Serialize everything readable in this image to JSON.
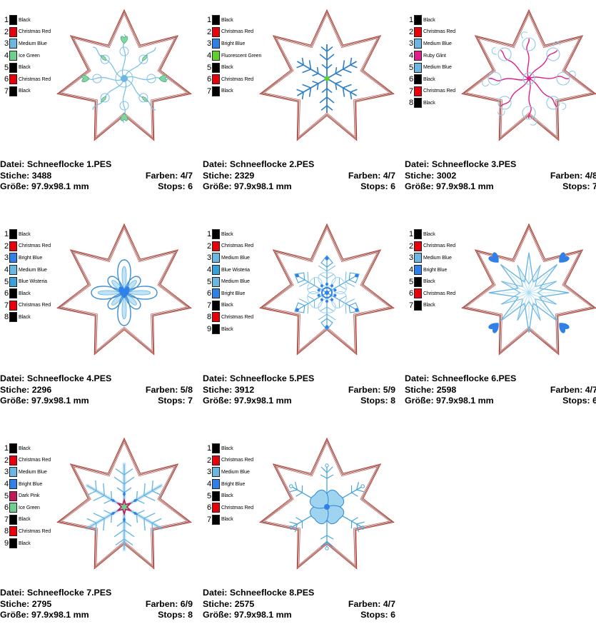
{
  "designs": [
    {
      "motif": "curls-green",
      "colors": [
        {
          "num": "1",
          "name": "Black",
          "hex": "#000000"
        },
        {
          "num": "2",
          "name": "Christmas Red",
          "hex": "#e8000b"
        },
        {
          "num": "3",
          "name": "Medium Blue",
          "hex": "#6bb7e3"
        },
        {
          "num": "4",
          "name": "Ice Green",
          "hex": "#6fcf8f"
        },
        {
          "num": "5",
          "name": "Black",
          "hex": "#000000"
        },
        {
          "num": "6",
          "name": "Christmas Red",
          "hex": "#e8000b"
        },
        {
          "num": "7",
          "name": "Black",
          "hex": "#000000"
        }
      ],
      "datei_label": "Datei: Schneeflocke 1.PES",
      "stiche_label": "Stiche: 3488",
      "farben_label": "Farben: 4/7",
      "groesse_label": "Größe: 97.9x98.1 mm",
      "stops_label": "Stops: 6"
    },
    {
      "motif": "branch-snowflake",
      "colors": [
        {
          "num": "1",
          "name": "Black",
          "hex": "#000000"
        },
        {
          "num": "2",
          "name": "Christmas Red",
          "hex": "#e8000b"
        },
        {
          "num": "3",
          "name": "Bright Blue",
          "hex": "#2f80e8"
        },
        {
          "num": "4",
          "name": "Fluorescent Green",
          "hex": "#5fd12a"
        },
        {
          "num": "5",
          "name": "Black",
          "hex": "#000000"
        },
        {
          "num": "6",
          "name": "Christmas Red",
          "hex": "#e8000b"
        },
        {
          "num": "7",
          "name": "Black",
          "hex": "#000000"
        }
      ],
      "datei_label": "Datei: Schneeflocke 2.PES",
      "stiche_label": "Stiche: 2329",
      "farben_label": "Farben: 4/7",
      "groesse_label": "Größe: 97.9x98.1 mm",
      "stops_label": "Stops: 6"
    },
    {
      "motif": "curls-pink",
      "colors": [
        {
          "num": "1",
          "name": "Black",
          "hex": "#000000"
        },
        {
          "num": "2",
          "name": "Christmas Red",
          "hex": "#e8000b"
        },
        {
          "num": "3",
          "name": "Medium Blue",
          "hex": "#6bb7e3"
        },
        {
          "num": "4",
          "name": "Ruby Glint",
          "hex": "#e0208a"
        },
        {
          "num": "5",
          "name": "Medium Blue",
          "hex": "#6bb7e3"
        },
        {
          "num": "6",
          "name": "Black",
          "hex": "#000000"
        },
        {
          "num": "7",
          "name": "Christmas Red",
          "hex": "#e8000b"
        },
        {
          "num": "8",
          "name": "Black",
          "hex": "#000000"
        }
      ],
      "datei_label": "Datei: Schneeflocke 3.PES",
      "stiche_label": "Stiche: 3002",
      "farben_label": "Farben: 4/8",
      "groesse_label": "Größe: 97.9x98.1 mm",
      "stops_label": "Stops: 7"
    },
    {
      "motif": "petals",
      "colors": [
        {
          "num": "1",
          "name": "Black",
          "hex": "#000000"
        },
        {
          "num": "2",
          "name": "Christmas Red",
          "hex": "#e8000b"
        },
        {
          "num": "3",
          "name": "Bright Blue",
          "hex": "#2f80e8"
        },
        {
          "num": "4",
          "name": "Medium Blue",
          "hex": "#6bb7e3"
        },
        {
          "num": "5",
          "name": "Blue Wisteria",
          "hex": "#3aa0d8"
        },
        {
          "num": "6",
          "name": "Black",
          "hex": "#000000"
        },
        {
          "num": "7",
          "name": "Christmas Red",
          "hex": "#e8000b"
        },
        {
          "num": "8",
          "name": "Black",
          "hex": "#000000"
        }
      ],
      "datei_label": "Datei: Schneeflocke 4.PES",
      "stiche_label": "Stiche: 2296",
      "farben_label": "Farben: 5/8",
      "groesse_label": "Größe: 97.9x98.1 mm",
      "stops_label": "Stops: 7"
    },
    {
      "motif": "lace",
      "colors": [
        {
          "num": "1",
          "name": "Black",
          "hex": "#000000"
        },
        {
          "num": "2",
          "name": "Christmas Red",
          "hex": "#e8000b"
        },
        {
          "num": "3",
          "name": "Medium Blue",
          "hex": "#6bb7e3"
        },
        {
          "num": "4",
          "name": "Blue Wisteria",
          "hex": "#3aa0d8"
        },
        {
          "num": "5",
          "name": "Medium Blue",
          "hex": "#6bb7e3"
        },
        {
          "num": "6",
          "name": "Bright Blue",
          "hex": "#2f80e8"
        },
        {
          "num": "7",
          "name": "Black",
          "hex": "#000000"
        },
        {
          "num": "8",
          "name": "Christmas Red",
          "hex": "#e8000b"
        },
        {
          "num": "9",
          "name": "Black",
          "hex": "#000000"
        }
      ],
      "datei_label": "Datei: Schneeflocke 5.PES",
      "stiche_label": "Stiche: 3912",
      "farben_label": "Farben: 5/9",
      "groesse_label": "Größe: 97.9x98.1 mm",
      "stops_label": "Stops: 8"
    },
    {
      "motif": "star-hearts",
      "colors": [
        {
          "num": "1",
          "name": "Black",
          "hex": "#000000"
        },
        {
          "num": "2",
          "name": "Christmas Red",
          "hex": "#e8000b"
        },
        {
          "num": "3",
          "name": "Medium Blue",
          "hex": "#6bb7e3"
        },
        {
          "num": "4",
          "name": "Bright Blue",
          "hex": "#2f80e8"
        },
        {
          "num": "5",
          "name": "Black",
          "hex": "#000000"
        },
        {
          "num": "6",
          "name": "Christmas Red",
          "hex": "#e8000b"
        },
        {
          "num": "7",
          "name": "Black",
          "hex": "#000000"
        }
      ],
      "datei_label": "Datei: Schneeflocke 6.PES",
      "stiche_label": "Stiche: 2598",
      "farben_label": "Farben: 4/7",
      "groesse_label": "Größe: 97.9x98.1 mm",
      "stops_label": "Stops: 6"
    },
    {
      "motif": "crystal",
      "colors": [
        {
          "num": "1",
          "name": "Black",
          "hex": "#000000"
        },
        {
          "num": "2",
          "name": "Christmas Red",
          "hex": "#e8000b"
        },
        {
          "num": "3",
          "name": "Medium Blue",
          "hex": "#6bb7e3"
        },
        {
          "num": "4",
          "name": "Bright Blue",
          "hex": "#2f80e8"
        },
        {
          "num": "5",
          "name": "Dark Pink",
          "hex": "#c2185b"
        },
        {
          "num": "6",
          "name": "Ice Green",
          "hex": "#6fcf8f"
        },
        {
          "num": "7",
          "name": "Black",
          "hex": "#000000"
        },
        {
          "num": "8",
          "name": "Christmas Red",
          "hex": "#e8000b"
        },
        {
          "num": "9",
          "name": "Black",
          "hex": "#000000"
        }
      ],
      "datei_label": "Datei: Schneeflocke 7.PES",
      "stiche_label": "Stiche: 2795",
      "farben_label": "Farben: 6/9",
      "groesse_label": "Größe: 97.9x98.1 mm",
      "stops_label": "Stops: 8"
    },
    {
      "motif": "butterfly",
      "colors": [
        {
          "num": "1",
          "name": "Black",
          "hex": "#000000"
        },
        {
          "num": "2",
          "name": "Christmas Red",
          "hex": "#e8000b"
        },
        {
          "num": "3",
          "name": "Medium Blue",
          "hex": "#6bb7e3"
        },
        {
          "num": "4",
          "name": "Bright Blue",
          "hex": "#2f80e8"
        },
        {
          "num": "5",
          "name": "Black",
          "hex": "#000000"
        },
        {
          "num": "6",
          "name": "Christmas Red",
          "hex": "#e8000b"
        },
        {
          "num": "7",
          "name": "Black",
          "hex": "#000000"
        }
      ],
      "datei_label": "Datei: Schneeflocke 8.PES",
      "stiche_label": "Stiche: 2575",
      "farben_label": "Farben: 4/7",
      "groesse_label": "Größe: 97.9x98.1 mm",
      "stops_label": "Stops: 6"
    }
  ]
}
